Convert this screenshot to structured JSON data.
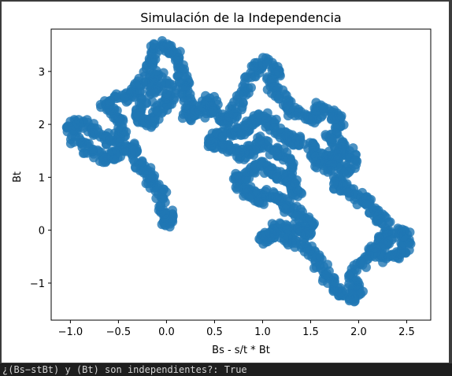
{
  "chart_data": {
    "type": "scatter",
    "title": "Simulación de la Independencia",
    "xlabel": "Bs - s/t * Bt",
    "ylabel": "Bt",
    "xlim": [
      -1.2,
      2.75
    ],
    "ylim": [
      -1.7,
      3.8
    ],
    "xticks": [
      -1.0,
      -0.5,
      0.0,
      0.5,
      1.0,
      1.5,
      2.0,
      2.5
    ],
    "xtick_labels": [
      "−1.0",
      "−0.5",
      "0.0",
      "0.5",
      "1.0",
      "1.5",
      "2.0",
      "2.5"
    ],
    "yticks": [
      -1,
      0,
      1,
      2,
      3
    ],
    "ytick_labels": [
      "−1",
      "0",
      "1",
      "2",
      "3"
    ],
    "grid": false,
    "color": "#1f77b4",
    "series": [
      {
        "path_description": "Brownian-like trajectory of points (Bs - s/t*Bt, Bt)",
        "points": [
          [
            0.05,
            0.3
          ],
          [
            0.0,
            0.1
          ],
          [
            -0.05,
            0.4
          ],
          [
            -0.05,
            0.7
          ],
          [
            -0.15,
            0.9
          ],
          [
            -0.2,
            1.1
          ],
          [
            -0.3,
            1.3
          ],
          [
            -0.35,
            1.6
          ],
          [
            -0.45,
            1.5
          ],
          [
            -0.55,
            1.4
          ],
          [
            -0.65,
            1.35
          ],
          [
            -0.8,
            1.5
          ],
          [
            -0.95,
            1.7
          ],
          [
            -1.0,
            2.0
          ],
          [
            -0.85,
            2.05
          ],
          [
            -0.75,
            1.85
          ],
          [
            -0.6,
            1.7
          ],
          [
            -0.5,
            1.75
          ],
          [
            -0.45,
            2.0
          ],
          [
            -0.55,
            2.2
          ],
          [
            -0.65,
            2.4
          ],
          [
            -0.5,
            2.5
          ],
          [
            -0.35,
            2.55
          ],
          [
            -0.25,
            2.85
          ],
          [
            -0.1,
            2.75
          ],
          [
            -0.2,
            2.5
          ],
          [
            -0.3,
            2.2
          ],
          [
            -0.2,
            2.0
          ],
          [
            -0.1,
            2.2
          ],
          [
            0.0,
            2.4
          ],
          [
            0.05,
            2.6
          ],
          [
            -0.05,
            2.9
          ],
          [
            -0.2,
            3.1
          ],
          [
            -0.15,
            3.4
          ],
          [
            0.0,
            3.5
          ],
          [
            0.1,
            3.3
          ],
          [
            0.15,
            3.0
          ],
          [
            0.2,
            2.7
          ],
          [
            0.25,
            2.4
          ],
          [
            0.2,
            2.15
          ],
          [
            0.35,
            2.2
          ],
          [
            0.45,
            2.5
          ],
          [
            0.5,
            2.25
          ],
          [
            0.6,
            2.05
          ],
          [
            0.7,
            2.2
          ],
          [
            0.8,
            2.5
          ],
          [
            0.85,
            2.85
          ],
          [
            0.95,
            3.1
          ],
          [
            1.05,
            3.2
          ],
          [
            1.15,
            3.0
          ],
          [
            1.05,
            2.75
          ],
          [
            1.2,
            2.55
          ],
          [
            1.25,
            2.3
          ],
          [
            1.4,
            2.2
          ],
          [
            1.55,
            2.1
          ],
          [
            1.6,
            2.35
          ],
          [
            1.75,
            2.2
          ],
          [
            1.8,
            2.0
          ],
          [
            1.7,
            1.75
          ],
          [
            1.85,
            1.6
          ],
          [
            1.95,
            1.35
          ],
          [
            1.85,
            1.1
          ],
          [
            1.75,
            0.85
          ],
          [
            1.9,
            0.8
          ],
          [
            2.0,
            0.6
          ],
          [
            2.1,
            0.5
          ],
          [
            2.2,
            0.25
          ],
          [
            2.3,
            0.05
          ],
          [
            2.25,
            -0.2
          ],
          [
            2.15,
            -0.4
          ],
          [
            2.3,
            -0.55
          ],
          [
            2.45,
            -0.45
          ],
          [
            2.5,
            -0.2
          ],
          [
            2.45,
            0.0
          ],
          [
            2.3,
            -0.3
          ],
          [
            2.1,
            -0.55
          ],
          [
            1.95,
            -0.75
          ],
          [
            1.95,
            -1.05
          ],
          [
            2.0,
            -1.25
          ],
          [
            1.85,
            -1.3
          ],
          [
            1.75,
            -1.05
          ],
          [
            1.65,
            -0.8
          ],
          [
            1.55,
            -0.55
          ],
          [
            1.45,
            -0.3
          ],
          [
            1.3,
            -0.2
          ],
          [
            1.15,
            -0.1
          ],
          [
            1.0,
            -0.2
          ],
          [
            1.05,
            -0.05
          ],
          [
            1.2,
            0.1
          ],
          [
            1.4,
            0.05
          ],
          [
            1.45,
            -0.1
          ],
          [
            1.5,
            0.1
          ],
          [
            1.35,
            0.3
          ],
          [
            1.25,
            0.45
          ],
          [
            1.15,
            0.6
          ],
          [
            1.05,
            0.7
          ],
          [
            0.95,
            0.55
          ],
          [
            0.85,
            0.7
          ],
          [
            0.75,
            0.85
          ],
          [
            0.75,
            1.0
          ],
          [
            0.9,
            1.1
          ],
          [
            1.0,
            1.3
          ],
          [
            1.1,
            1.1
          ],
          [
            1.2,
            1.0
          ],
          [
            1.3,
            0.9
          ],
          [
            1.35,
            0.7
          ],
          [
            1.3,
            1.2
          ],
          [
            1.2,
            1.45
          ],
          [
            1.1,
            1.5
          ],
          [
            1.0,
            1.7
          ],
          [
            0.9,
            1.55
          ],
          [
            0.8,
            1.4
          ],
          [
            0.7,
            1.5
          ],
          [
            0.6,
            1.6
          ],
          [
            0.45,
            1.65
          ],
          [
            0.55,
            1.8
          ],
          [
            0.7,
            1.85
          ],
          [
            0.85,
            1.9
          ],
          [
            0.9,
            2.05
          ],
          [
            1.0,
            2.15
          ],
          [
            1.1,
            2.0
          ],
          [
            1.2,
            1.8
          ],
          [
            1.3,
            1.7
          ],
          [
            1.45,
            1.65
          ],
          [
            1.55,
            1.45
          ],
          [
            1.6,
            1.25
          ],
          [
            1.7,
            1.4
          ],
          [
            1.8,
            1.5
          ],
          [
            1.75,
            1.3
          ],
          [
            1.65,
            1.15
          ]
        ]
      }
    ]
  },
  "console": {
    "output": "¿(Bs−stBt) y (Bt) son independientes?: True"
  }
}
